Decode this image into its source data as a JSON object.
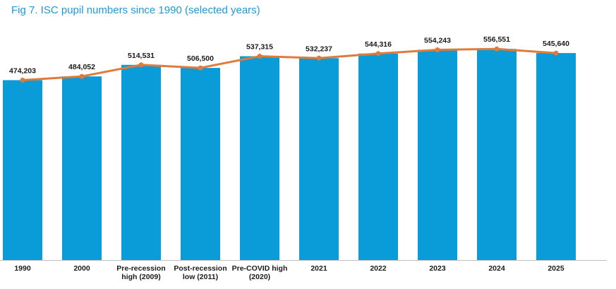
{
  "title": "Fig 7. ISC pupil numbers since 1990 (selected years)",
  "colors": {
    "bar": "#0a9bd9",
    "line": "#e07b39",
    "title": "#1e9ad6",
    "axis": "#bfbfbf",
    "text": "#1a1a1a"
  },
  "chart_data": {
    "type": "bar",
    "title": "Fig 7. ISC pupil numbers since 1990 (selected years)",
    "xlabel": "",
    "ylabel": "",
    "ylim": [
      0,
      570000
    ],
    "grid": false,
    "legend": "none",
    "categories": [
      [
        "1990"
      ],
      [
        "2000"
      ],
      [
        "Pre-recession",
        "high (2009)"
      ],
      [
        "Post-recession",
        "low (2011)"
      ],
      [
        "Pre-COVID high",
        "(2020)"
      ],
      [
        "2021"
      ],
      [
        "2022"
      ],
      [
        "2023"
      ],
      [
        "2024"
      ],
      [
        "2025"
      ]
    ],
    "series": [
      {
        "name": "Pupil numbers (bars)",
        "type": "bar",
        "values": [
          474203,
          484052,
          514531,
          506500,
          537315,
          532237,
          544316,
          554243,
          556551,
          545640
        ]
      },
      {
        "name": "Pupil numbers (line)",
        "type": "line",
        "values": [
          474203,
          484052,
          514531,
          506500,
          537315,
          532237,
          544316,
          554243,
          556551,
          545640
        ]
      }
    ],
    "data_labels": [
      "474,203",
      "484,052",
      "514,531",
      "506,500",
      "537,315",
      "532,237",
      "544,316",
      "554,243",
      "556,551",
      "545,640"
    ]
  }
}
